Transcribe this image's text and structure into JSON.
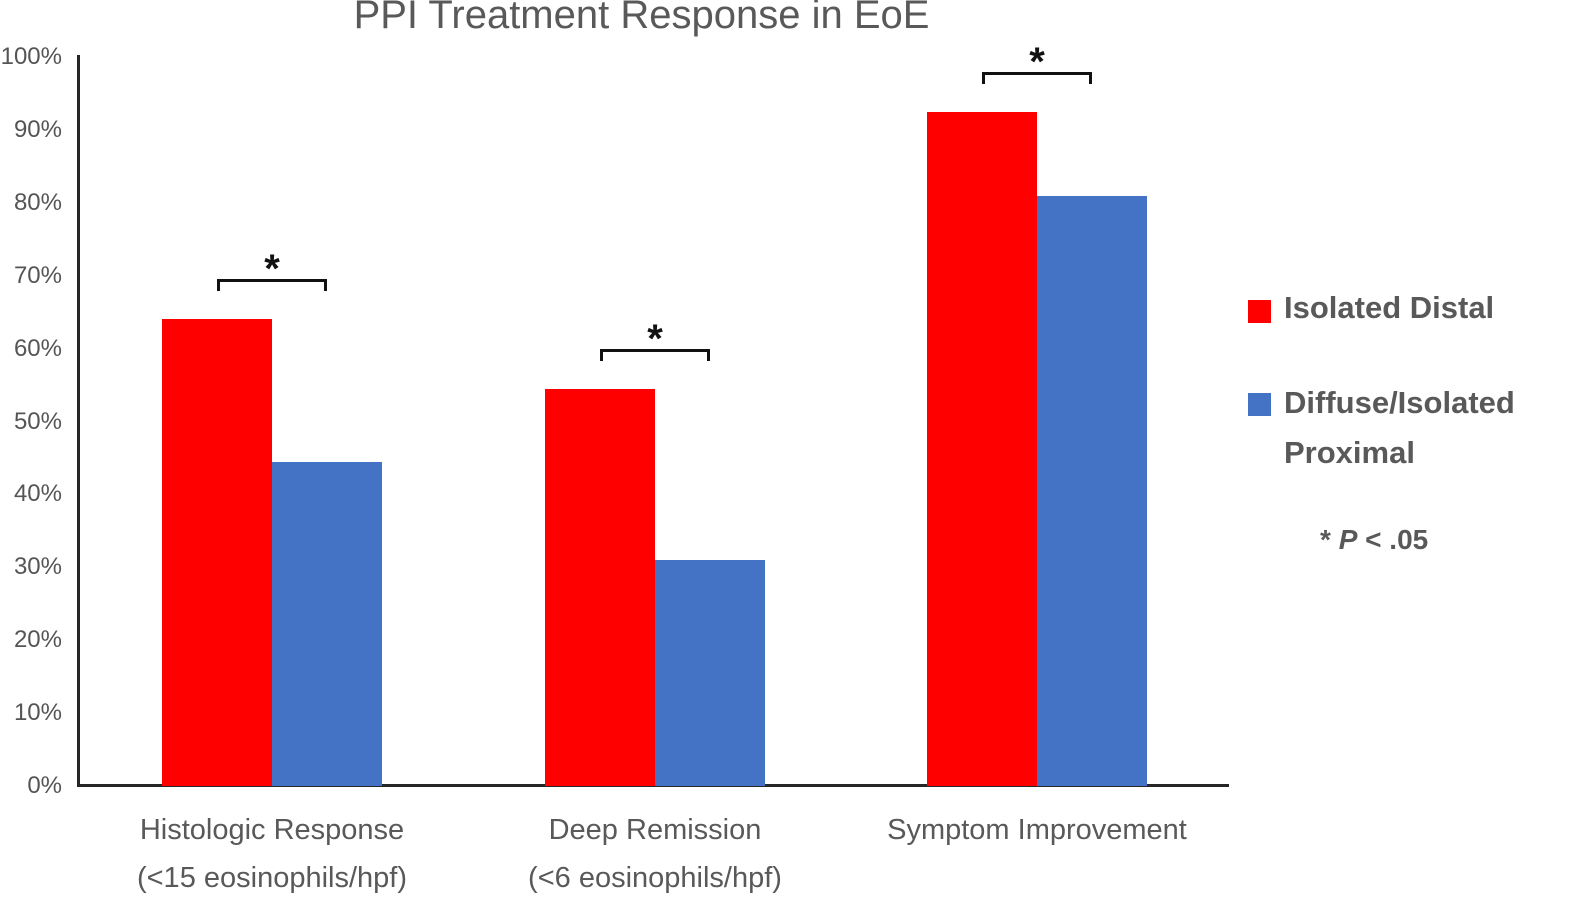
{
  "title": "PPI Treatment Response in EoE",
  "chart_data": {
    "type": "bar",
    "categories": [
      "Histologic Response\n(<15 eosinophils/hpf)",
      "Deep Remission\n(<6 eosinophils/hpf)",
      "Symptom Improvement"
    ],
    "series": [
      {
        "name": "Isolated Distal",
        "color": "#FF0000",
        "values": [
          64,
          54.5,
          92.5
        ]
      },
      {
        "name": "Diffuse/Isolated Proximal",
        "color": "#4472C4",
        "values": [
          44.5,
          31,
          81
        ]
      }
    ],
    "ylim": [
      0,
      100
    ],
    "ytick_step": 10,
    "ytick_labels": [
      "0%",
      "10%",
      "20%",
      "30%",
      "40%",
      "50%",
      "60%",
      "70%",
      "80%",
      "90%",
      "100%"
    ],
    "grid": false,
    "legend_position": "right",
    "significance_markers": [
      {
        "category_index": 0,
        "symbol": "*"
      },
      {
        "category_index": 1,
        "symbol": "*"
      },
      {
        "category_index": 2,
        "symbol": "*"
      }
    ],
    "footnote": "* P < .05"
  },
  "legend": {
    "entries": [
      {
        "label": "Isolated Distal",
        "color": "#FF0000"
      },
      {
        "label": "Diffuse/Isolated\nProximal",
        "color": "#4472C4"
      }
    ],
    "note": {
      "symbol": "*",
      "variable": "P",
      "rest": " < .05"
    }
  },
  "colors": {
    "axis": "#262626",
    "text": "#595959",
    "bar_red": "#FF0000",
    "bar_blue": "#4472C4",
    "bracket": "#111111"
  }
}
